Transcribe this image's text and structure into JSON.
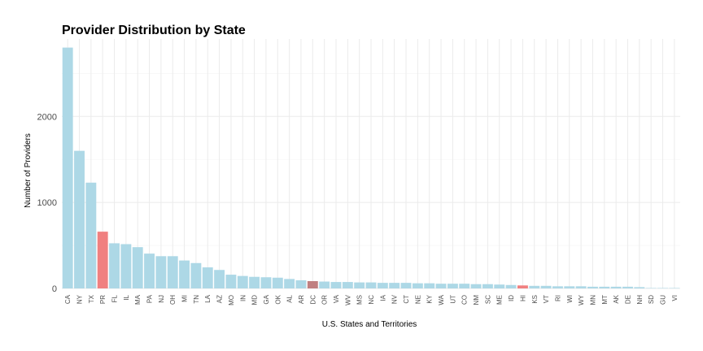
{
  "chart_data": {
    "type": "bar",
    "title": "Provider Distribution by State",
    "xlabel": "U.S. States and Territories",
    "ylabel": "Number of Providers",
    "ylim": [
      0,
      2900
    ],
    "yticks": [
      0,
      1000,
      2000
    ],
    "grid": true,
    "legend": "none",
    "categories": [
      "CA",
      "NY",
      "TX",
      "PR",
      "FL",
      "IL",
      "MA",
      "PA",
      "NJ",
      "OH",
      "MI",
      "TN",
      "LA",
      "AZ",
      "MO",
      "IN",
      "MD",
      "GA",
      "OK",
      "AL",
      "AR",
      "DC",
      "OR",
      "VA",
      "WV",
      "MS",
      "NC",
      "IA",
      "NV",
      "CT",
      "NE",
      "KY",
      "WA",
      "UT",
      "CO",
      "NM",
      "SC",
      "ME",
      "ID",
      "HI",
      "KS",
      "VT",
      "RI",
      "WI",
      "WY",
      "MN",
      "MT",
      "AK",
      "DE",
      "NH",
      "SD",
      "GU",
      "VI"
    ],
    "values": [
      2800,
      1600,
      1230,
      660,
      525,
      515,
      480,
      405,
      375,
      375,
      325,
      295,
      245,
      215,
      160,
      145,
      135,
      130,
      125,
      110,
      95,
      85,
      80,
      75,
      75,
      70,
      70,
      65,
      65,
      65,
      60,
      60,
      55,
      55,
      55,
      50,
      50,
      45,
      40,
      35,
      30,
      30,
      25,
      25,
      25,
      20,
      20,
      20,
      20,
      15,
      5,
      5,
      5
    ],
    "colors": {
      "default": "#add8e6",
      "highlight": "#f08080",
      "dc": "#c08081"
    },
    "highlighted": [
      "PR",
      "HI"
    ],
    "special": [
      "DC"
    ]
  }
}
